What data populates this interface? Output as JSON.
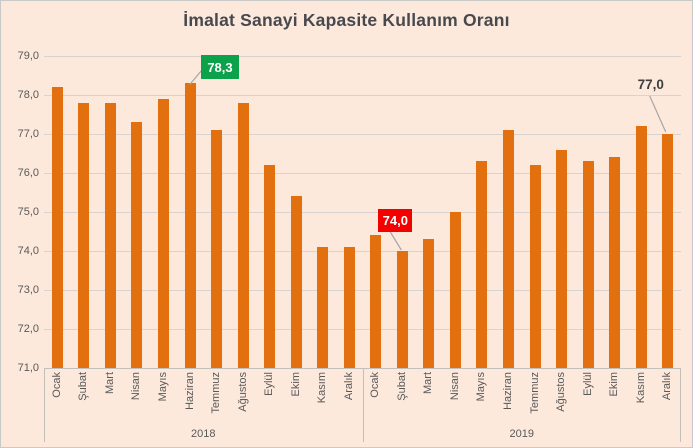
{
  "title": "İmalat Sanayi Kapasite Kullanım Oranı",
  "chart_data": {
    "type": "bar",
    "title": "İmalat Sanayi Kapasite Kullanım Oranı",
    "xlabel": "",
    "ylabel": "",
    "ylim": [
      71.0,
      79.0
    ],
    "ytick_step": 1.0,
    "y_tick_labels": [
      "79,0",
      "78,0",
      "77,0",
      "76,0",
      "75,0",
      "74,0",
      "73,0",
      "72,0",
      "71,0"
    ],
    "grid": true,
    "month_labels": [
      "Ocak",
      "Şubat",
      "Mart",
      "Nisan",
      "Mayıs",
      "Haziran",
      "Temmuz",
      "Ağustos",
      "Eylül",
      "Ekim",
      "Kasım",
      "Aralık"
    ],
    "groups": [
      {
        "label": "2018",
        "values": [
          78.2,
          77.8,
          77.8,
          77.3,
          77.9,
          78.3,
          77.1,
          77.8,
          76.2,
          75.4,
          74.1,
          74.1
        ]
      },
      {
        "label": "2019",
        "values": [
          74.4,
          74.0,
          74.3,
          75.0,
          76.3,
          77.1,
          76.2,
          76.6,
          76.3,
          76.4,
          77.2,
          77.0
        ]
      }
    ],
    "annotations": [
      {
        "text": "78,3",
        "style": "green-box",
        "group": 0,
        "month_index": 5
      },
      {
        "text": "74,0",
        "style": "red-box",
        "group": 1,
        "month_index": 1
      },
      {
        "text": "77,0",
        "style": "plain",
        "group": 1,
        "month_index": 11
      }
    ]
  },
  "colors": {
    "background": "#FCE9DC",
    "border": "#C9C9C9",
    "bar": "#E2700E",
    "gridline": "#D8D3CE",
    "axis_line": "#C3BFBB",
    "text_gray": "#595959",
    "title": "#47494F",
    "annotation_green": "#0CA24C",
    "annotation_red": "#F40000",
    "annotation_plain_text": "#3E3E3E",
    "leader_line": "#A6A6A6"
  }
}
